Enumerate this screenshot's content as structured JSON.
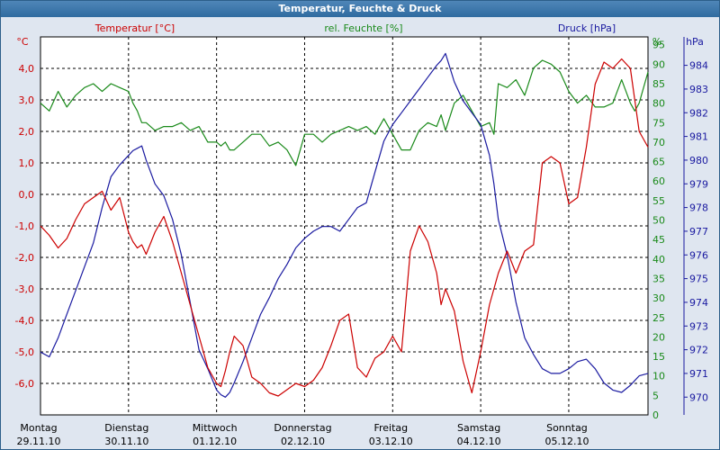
{
  "window": {
    "title": "Temperatur, Feuchte & Druck"
  },
  "colors": {
    "temperature": "#cc0000",
    "humidity": "#1a8a1a",
    "pressure": "#1a1aa0",
    "background": "#dfe6f0"
  },
  "chart_data": {
    "type": "line",
    "title": "Temperatur, Feuchte & Druck",
    "grid": true,
    "x_ticks": [
      {
        "day": "Montag",
        "date": "29.11.10"
      },
      {
        "day": "Dienstag",
        "date": "30.11.10"
      },
      {
        "day": "Mittwoch",
        "date": "01.12.10"
      },
      {
        "day": "Donnerstag",
        "date": "02.12.10"
      },
      {
        "day": "Freitag",
        "date": "03.12.10"
      },
      {
        "day": "Samstag",
        "date": "04.12.10"
      },
      {
        "day": "Sonntag",
        "date": "05.12.10"
      }
    ],
    "axes": {
      "temperature": {
        "label": "Temperatur [°C]",
        "unit": "°C",
        "range": [
          -7,
          5
        ],
        "ticks": [
          "4,0",
          "3,0",
          "2,0",
          "1,0",
          "0,0",
          "-1,0",
          "-2,0",
          "-3,0",
          "-4,0",
          "-5,0",
          "-6,0"
        ]
      },
      "humidity": {
        "label": "rel. Feuchte [%]",
        "unit": "%",
        "range": [
          0,
          97
        ],
        "ticks": [
          "95",
          "90",
          "85",
          "80",
          "75",
          "70",
          "65",
          "60",
          "55",
          "50",
          "45",
          "40",
          "35",
          "30",
          "25",
          "20",
          "15",
          "10",
          "5",
          "0"
        ]
      },
      "pressure": {
        "label": "Druck [hPa]",
        "unit": "hPa",
        "range": [
          969.25,
          985.2
        ],
        "ticks": [
          "984",
          "983",
          "982",
          "981",
          "980",
          "979",
          "978",
          "977",
          "976",
          "975",
          "974",
          "973",
          "972",
          "971",
          "970"
        ]
      }
    },
    "x_range_days": [
      0,
      6.9
    ],
    "series": [
      {
        "name": "Temperatur [°C]",
        "axis": "temperature",
        "x": [
          0,
          0.1,
          0.2,
          0.3,
          0.4,
          0.5,
          0.6,
          0.7,
          0.8,
          0.9,
          1.0,
          1.05,
          1.1,
          1.15,
          1.2,
          1.3,
          1.4,
          1.5,
          1.6,
          1.7,
          1.8,
          1.9,
          2.0,
          2.05,
          2.1,
          2.15,
          2.2,
          2.3,
          2.4,
          2.5,
          2.6,
          2.7,
          2.8,
          2.9,
          3.0,
          3.1,
          3.2,
          3.3,
          3.4,
          3.5,
          3.6,
          3.7,
          3.8,
          3.9,
          4.0,
          4.1,
          4.2,
          4.3,
          4.4,
          4.5,
          4.55,
          4.6,
          4.7,
          4.8,
          4.9,
          5.0,
          5.1,
          5.15,
          5.2,
          5.3,
          5.4,
          5.5,
          5.6,
          5.7,
          5.8,
          5.9,
          6.0,
          6.1,
          6.2,
          6.3,
          6.4,
          6.5,
          6.6,
          6.7,
          6.75,
          6.8,
          6.9
        ],
        "values": [
          -1,
          -1.3,
          -1.7,
          -1.4,
          -0.8,
          -0.3,
          -0.1,
          0.1,
          -0.5,
          -0.1,
          -1.2,
          -1.5,
          -1.7,
          -1.6,
          -1.9,
          -1.2,
          -0.7,
          -1.5,
          -2.5,
          -3.5,
          -4.5,
          -5.5,
          -6.0,
          -6.1,
          -5.6,
          -5.0,
          -4.5,
          -4.8,
          -5.8,
          -6.0,
          -6.3,
          -6.4,
          -6.2,
          -6.0,
          -6.1,
          -5.9,
          -5.5,
          -4.8,
          -4.0,
          -3.8,
          -5.5,
          -5.8,
          -5.2,
          -5.0,
          -4.5,
          -5.0,
          -1.8,
          -1.0,
          -1.5,
          -2.5,
          -3.5,
          -3.0,
          -3.7,
          -5.3,
          -6.3,
          -5.0,
          -3.5,
          -3.0,
          -2.5,
          -1.8,
          -2.5,
          -1.8,
          -1.6,
          1.0,
          1.2,
          1.0,
          -0.3,
          -0.1,
          1.5,
          3.5,
          4.2,
          4.0,
          4.3,
          4.0,
          3.0,
          2.0,
          1.5
        ]
      },
      {
        "name": "rel. Feuchte [%]",
        "axis": "humidity",
        "x": [
          0,
          0.1,
          0.2,
          0.3,
          0.4,
          0.5,
          0.6,
          0.7,
          0.8,
          0.9,
          1.0,
          1.05,
          1.1,
          1.15,
          1.2,
          1.3,
          1.4,
          1.5,
          1.6,
          1.7,
          1.8,
          1.9,
          2.0,
          2.05,
          2.1,
          2.15,
          2.2,
          2.3,
          2.4,
          2.5,
          2.6,
          2.7,
          2.8,
          2.9,
          3.0,
          3.1,
          3.2,
          3.3,
          3.4,
          3.5,
          3.6,
          3.7,
          3.8,
          3.9,
          4.0,
          4.1,
          4.2,
          4.3,
          4.4,
          4.5,
          4.55,
          4.6,
          4.7,
          4.8,
          4.9,
          5.0,
          5.1,
          5.15,
          5.2,
          5.3,
          5.4,
          5.5,
          5.6,
          5.7,
          5.8,
          5.9,
          6.0,
          6.1,
          6.2,
          6.3,
          6.4,
          6.5,
          6.6,
          6.7,
          6.75,
          6.8,
          6.9
        ],
        "values": [
          80,
          78,
          83,
          79,
          82,
          84,
          85,
          83,
          85,
          84,
          83,
          80,
          78,
          75,
          75,
          73,
          74,
          74,
          75,
          73,
          74,
          70,
          70,
          69,
          70,
          68,
          68,
          70,
          72,
          72,
          69,
          70,
          68,
          64,
          72,
          72,
          70,
          72,
          73,
          74,
          73,
          74,
          72,
          76,
          72,
          68,
          68,
          73,
          75,
          74,
          77,
          73,
          80,
          82,
          78,
          74,
          75,
          72,
          85,
          84,
          86,
          82,
          89,
          91,
          90,
          88,
          83,
          80,
          82,
          79,
          79,
          80,
          86,
          80,
          78,
          80,
          88
        ]
      },
      {
        "name": "Druck [hPa]",
        "axis": "pressure",
        "x": [
          0,
          0.1,
          0.2,
          0.3,
          0.4,
          0.5,
          0.6,
          0.7,
          0.8,
          0.9,
          1.0,
          1.05,
          1.1,
          1.15,
          1.2,
          1.3,
          1.4,
          1.5,
          1.6,
          1.7,
          1.8,
          1.9,
          2.0,
          2.05,
          2.1,
          2.15,
          2.2,
          2.3,
          2.4,
          2.5,
          2.6,
          2.7,
          2.8,
          2.9,
          3.0,
          3.1,
          3.2,
          3.3,
          3.4,
          3.5,
          3.6,
          3.7,
          3.8,
          3.9,
          4.0,
          4.1,
          4.2,
          4.3,
          4.4,
          4.5,
          4.55,
          4.6,
          4.7,
          4.8,
          4.9,
          5.0,
          5.1,
          5.15,
          5.2,
          5.3,
          5.4,
          5.5,
          5.6,
          5.7,
          5.8,
          5.9,
          6.0,
          6.1,
          6.2,
          6.3,
          6.4,
          6.5,
          6.6,
          6.7,
          6.75,
          6.8,
          6.9
        ],
        "values": [
          971.9,
          971.7,
          972.5,
          973.5,
          974.5,
          975.5,
          976.5,
          978.0,
          979.3,
          979.8,
          980.2,
          980.4,
          980.5,
          980.6,
          980.0,
          979.0,
          978.5,
          977.5,
          976.0,
          974.0,
          972.0,
          971.2,
          970.3,
          970.1,
          970.0,
          970.2,
          970.6,
          971.5,
          972.5,
          973.5,
          974.2,
          975.0,
          975.6,
          976.3,
          976.7,
          977.0,
          977.2,
          977.2,
          977.0,
          977.5,
          978.0,
          978.2,
          979.5,
          980.8,
          981.5,
          982.0,
          982.5,
          983.0,
          983.5,
          984.0,
          984.2,
          984.5,
          983.3,
          982.5,
          982.0,
          981.5,
          980.2,
          979.0,
          977.5,
          976.0,
          974.0,
          972.5,
          971.8,
          971.2,
          971.0,
          971.0,
          971.2,
          971.5,
          971.6,
          971.2,
          970.6,
          970.3,
          970.2,
          970.5,
          970.7,
          970.9,
          971.0
        ]
      }
    ]
  }
}
